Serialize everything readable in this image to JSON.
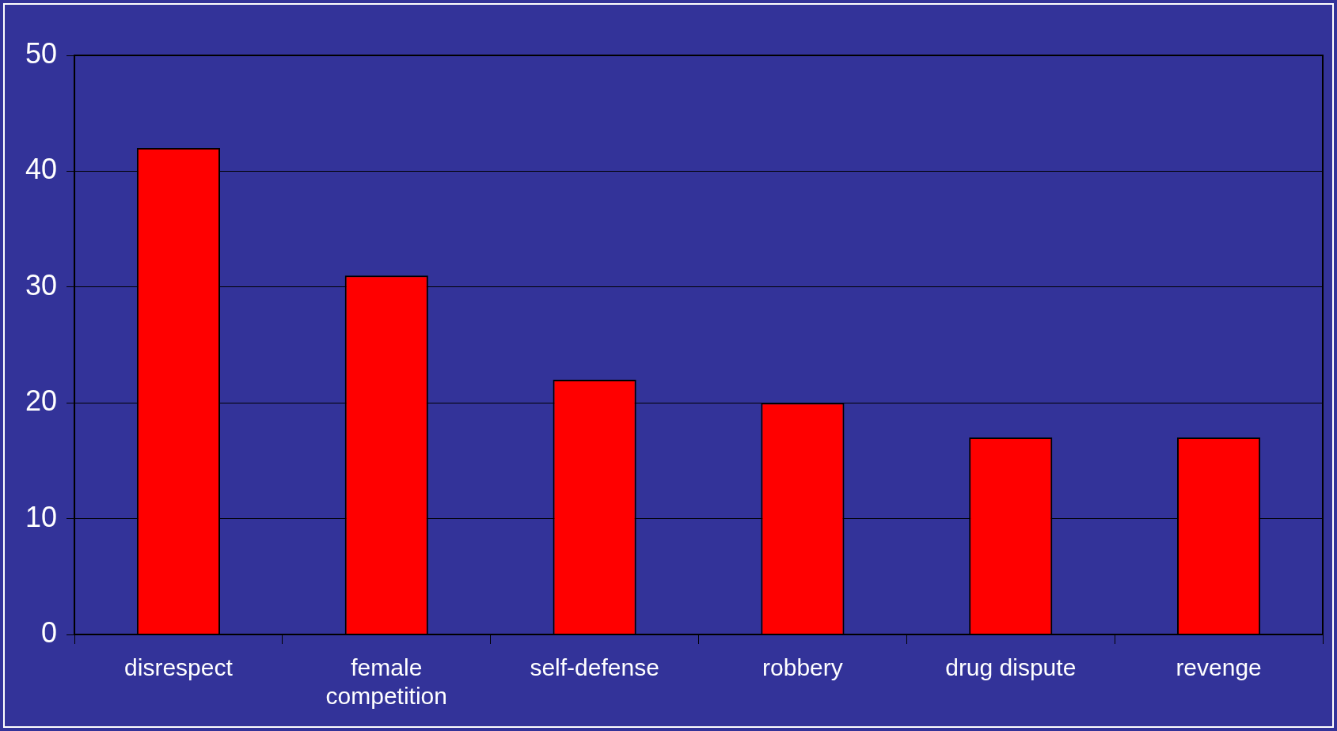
{
  "chart_data": {
    "type": "bar",
    "categories": [
      "disrespect",
      "female competition",
      "self-defense",
      "robbery",
      "drug dispute",
      "revenge"
    ],
    "values": [
      42,
      31,
      22,
      20,
      17,
      17
    ],
    "color": "#ff0000",
    "ylim": [
      0,
      50
    ],
    "yticks": [
      0,
      10,
      20,
      30,
      40,
      50
    ],
    "grid": "y"
  }
}
